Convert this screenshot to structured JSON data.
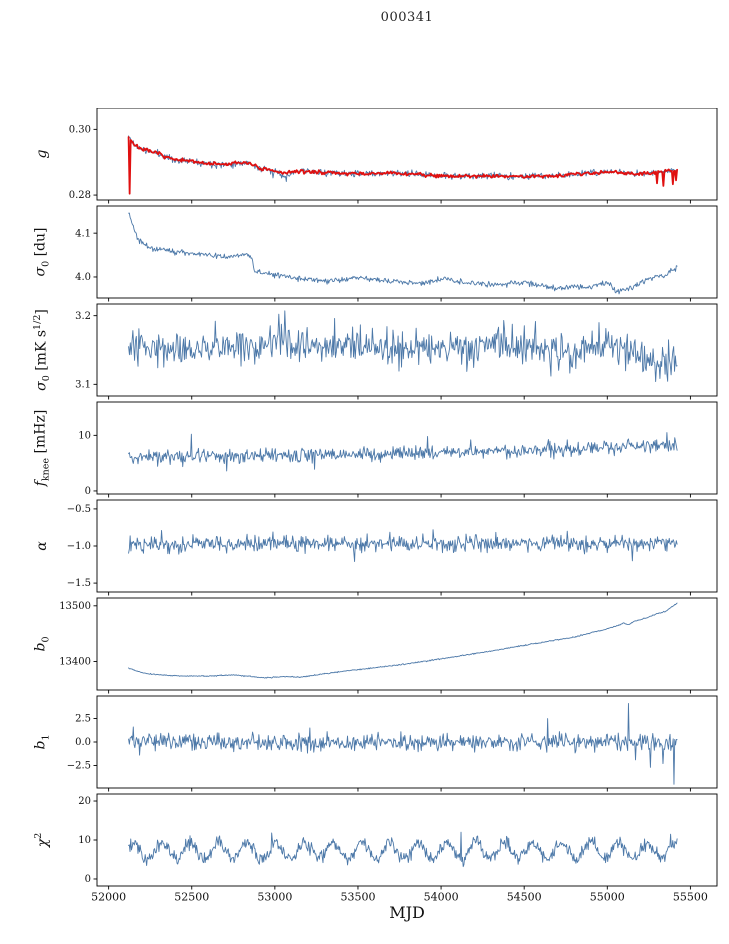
{
  "title": "000341",
  "xlabel": "MJD",
  "chart_data": {
    "type": "line",
    "title": "000341",
    "x_axis": {
      "label": "MJD",
      "range": [
        51930,
        55660
      ],
      "ticks": [
        52000,
        52500,
        53000,
        53500,
        54000,
        54500,
        55000,
        55500
      ],
      "tick_labels": [
        "52000",
        "52500",
        "53000",
        "53500",
        "54000",
        "54500",
        "55000",
        "55500"
      ]
    },
    "line_color": "#4c78a8",
    "overlay_color": "#e01010",
    "panels": [
      {
        "id": "g",
        "ylabel": "g",
        "ylabel_html": "<i>g</i>",
        "ylim": [
          0.2785,
          0.3065
        ],
        "yticks": [
          {
            "v": 0.28,
            "label": "0.28"
          },
          {
            "v": 0.3,
            "label": "0.30"
          }
        ],
        "series": [
          {
            "name": "gain-raw",
            "color": "#4c78a8",
            "lw": 0.9,
            "noise": 0.0005,
            "seed": 11,
            "n": 700,
            "trend": {
              "x": [
                52120,
                52160,
                52220,
                52300,
                52400,
                52500,
                52600,
                52700,
                52800,
                52860,
                52900,
                53000,
                53060,
                53150,
                53300,
                53500,
                53700,
                53900,
                54100,
                54300,
                54500,
                54700,
                54900,
                55050,
                55150,
                55250,
                55350,
                55420
              ],
              "y": [
                0.2978,
                0.295,
                0.2936,
                0.2926,
                0.2906,
                0.2903,
                0.2896,
                0.2893,
                0.2899,
                0.2897,
                0.2881,
                0.2872,
                0.286,
                0.2872,
                0.2869,
                0.2864,
                0.2867,
                0.2862,
                0.2857,
                0.2859,
                0.2856,
                0.286,
                0.2867,
                0.2872,
                0.2864,
                0.2866,
                0.2872,
                0.2879
              ]
            },
            "spikes": [
              {
                "x": 53070,
                "y": 0.2841
              },
              {
                "x": 52990,
                "y": 0.2852
              }
            ]
          },
          {
            "name": "gain-smooth",
            "color": "#e01010",
            "lw": 1.8,
            "noise": 0.00028,
            "seed": 7,
            "n": 520,
            "trend": {
              "x": [
                52120,
                52160,
                52220,
                52300,
                52400,
                52500,
                52600,
                52700,
                52800,
                52860,
                52900,
                53000,
                53060,
                53150,
                53300,
                53500,
                53700,
                53900,
                54100,
                54300,
                54500,
                54700,
                54900,
                55050,
                55150,
                55250,
                55350,
                55420
              ],
              "y": [
                0.2978,
                0.295,
                0.2936,
                0.2926,
                0.2906,
                0.2903,
                0.2896,
                0.2893,
                0.2899,
                0.2897,
                0.2881,
                0.2872,
                0.2868,
                0.2872,
                0.2869,
                0.2864,
                0.2867,
                0.2862,
                0.2857,
                0.2859,
                0.2856,
                0.286,
                0.2867,
                0.2872,
                0.2864,
                0.2866,
                0.2872,
                0.2879
              ]
            },
            "spikes": [
              {
                "x": 52124,
                "y": 0.3058
              },
              {
                "x": 52128,
                "y": 0.2804
              },
              {
                "x": 55300,
                "y": 0.2836
              },
              {
                "x": 55340,
                "y": 0.2828
              },
              {
                "x": 55395,
                "y": 0.2833
              },
              {
                "x": 55415,
                "y": 0.2845
              }
            ]
          }
        ]
      },
      {
        "id": "sigma0-du",
        "ylabel": "sigma0 [du]",
        "ylabel_html": "<i>σ</i><sub>0</sub> [du]",
        "ylim": [
          3.952,
          4.162
        ],
        "yticks": [
          {
            "v": 4.0,
            "label": "4.0"
          },
          {
            "v": 4.1,
            "label": "4.1"
          }
        ],
        "series": [
          {
            "name": "sigma0-du",
            "color": "#4c78a8",
            "lw": 0.9,
            "noise": 0.0032,
            "seed": 21,
            "n": 700,
            "trend": {
              "x": [
                52120,
                52170,
                52250,
                52350,
                52500,
                52600,
                52700,
                52800,
                52860,
                52880,
                53000,
                53100,
                53300,
                53500,
                53700,
                53900,
                54000,
                54100,
                54300,
                54500,
                54700,
                54800,
                54900,
                55000,
                55050,
                55150,
                55250,
                55350,
                55420
              ],
              "y": [
                4.148,
                4.09,
                4.065,
                4.06,
                4.055,
                4.05,
                4.046,
                4.05,
                4.048,
                4.012,
                4.005,
                3.998,
                3.99,
                3.998,
                3.99,
                3.986,
                3.996,
                3.99,
                3.982,
                3.988,
                3.972,
                3.98,
                3.976,
                3.988,
                3.968,
                3.976,
                3.995,
                4.005,
                4.02
              ]
            },
            "spikes": []
          }
        ]
      },
      {
        "id": "sigma0-mk",
        "ylabel": "sigma0 [mK s^1/2]",
        "ylabel_html": "<i>σ</i><sub>0</sub> [mK s<sup>1/2</sup>]",
        "ylim": [
          3.083,
          3.217
        ],
        "yticks": [
          {
            "v": 3.1,
            "label": "3.1"
          },
          {
            "v": 3.2,
            "label": "3.2"
          }
        ],
        "series": [
          {
            "name": "sigma0-mk",
            "color": "#4c78a8",
            "lw": 0.9,
            "noise": 0.013,
            "seed": 31,
            "n": 640,
            "trend": {
              "x": [
                52120,
                52300,
                52500,
                52700,
                52900,
                53050,
                53100,
                53300,
                53500,
                53700,
                53900,
                54100,
                54300,
                54500,
                54700,
                54900,
                55100,
                55250,
                55350,
                55420
              ],
              "y": [
                3.148,
                3.157,
                3.152,
                3.158,
                3.15,
                3.168,
                3.152,
                3.155,
                3.16,
                3.148,
                3.152,
                3.15,
                3.155,
                3.158,
                3.15,
                3.155,
                3.148,
                3.14,
                3.128,
                3.138
              ]
            },
            "spikes": [
              {
                "x": 53060,
                "y": 3.207
              },
              {
                "x": 52640,
                "y": 3.192
              },
              {
                "x": 53360,
                "y": 3.196
              },
              {
                "x": 54950,
                "y": 3.19
              },
              {
                "x": 55290,
                "y": 3.104
              },
              {
                "x": 54660,
                "y": 3.112
              }
            ]
          }
        ]
      },
      {
        "id": "fknee",
        "ylabel": "f_knee [mHz]",
        "ylabel_html": "<i>f</i><sub>knee</sub> [mHz]",
        "ylim": [
          -0.55,
          16
        ],
        "yticks": [
          {
            "v": 0,
            "label": "0"
          },
          {
            "v": 10,
            "label": "10"
          }
        ],
        "series": [
          {
            "name": "fknee",
            "color": "#4c78a8",
            "lw": 0.9,
            "noise": 0.65,
            "seed": 41,
            "n": 700,
            "trend": {
              "x": [
                52120,
                52600,
                53000,
                53500,
                54000,
                54500,
                55000,
                55300,
                55420
              ],
              "y": [
                6.1,
                6.2,
                6.35,
                6.6,
                6.9,
                7.3,
                7.9,
                8.3,
                8.4
              ]
            },
            "spikes": [
              {
                "x": 52500,
                "y": 10.2
              },
              {
                "x": 52710,
                "y": 3.6
              },
              {
                "x": 53920,
                "y": 9.8
              },
              {
                "x": 54180,
                "y": 9.2
              },
              {
                "x": 55360,
                "y": 10.5
              },
              {
                "x": 53240,
                "y": 3.9
              }
            ]
          }
        ]
      },
      {
        "id": "alpha",
        "ylabel": "alpha",
        "ylabel_html": "<i>α</i>",
        "ylim": [
          -1.62,
          -0.38
        ],
        "yticks": [
          {
            "v": -0.5,
            "label": "−0.5"
          },
          {
            "v": -1.0,
            "label": "−1.0"
          },
          {
            "v": -1.5,
            "label": "−1.5"
          }
        ],
        "series": [
          {
            "name": "alpha",
            "color": "#4c78a8",
            "lw": 0.9,
            "noise": 0.055,
            "seed": 51,
            "n": 700,
            "trend": {
              "x": [
                52120,
                53000,
                54000,
                55000,
                55420
              ],
              "y": [
                -0.975,
                -0.968,
                -0.972,
                -0.962,
                -0.958
              ]
            },
            "spikes": [
              {
                "x": 52320,
                "y": -0.79
              },
              {
                "x": 53480,
                "y": -1.21
              },
              {
                "x": 54760,
                "y": -0.8
              },
              {
                "x": 55150,
                "y": -1.2
              },
              {
                "x": 53950,
                "y": -0.78
              }
            ]
          }
        ]
      },
      {
        "id": "b0",
        "ylabel": "b_0",
        "ylabel_html": "<i>b</i><sub>0</sub>",
        "ylim": [
          13349,
          13514
        ],
        "yticks": [
          {
            "v": 13400,
            "label": "13400"
          },
          {
            "v": 13500,
            "label": "13500"
          }
        ],
        "series": [
          {
            "name": "b0",
            "color": "#4c78a8",
            "lw": 0.9,
            "noise": 0.5,
            "seed": 61,
            "n": 700,
            "trend": {
              "x": [
                52120,
                52200,
                52300,
                52450,
                52600,
                52750,
                52900,
                52950,
                53050,
                53150,
                53250,
                53400,
                53600,
                53800,
                54000,
                54200,
                54400,
                54600,
                54800,
                54950,
                55050,
                55100,
                55130,
                55160,
                55250,
                55300,
                55350,
                55420
              ],
              "y": [
                13388,
                13380,
                13376,
                13374,
                13374,
                13376,
                13372,
                13371,
                13373,
                13372,
                13376,
                13382,
                13389,
                13396,
                13405,
                13414,
                13424,
                13434,
                13444,
                13455,
                13463,
                13469,
                13466,
                13472,
                13480,
                13486,
                13490,
                13505
              ]
            },
            "spikes": []
          }
        ]
      },
      {
        "id": "b1",
        "ylabel": "b_1",
        "ylabel_html": "<i>b</i><sub>1</sub>",
        "ylim": [
          -4.9,
          4.9
        ],
        "yticks": [
          {
            "v": 2.5,
            "label": "2.5"
          },
          {
            "v": 0.0,
            "label": "0.0"
          },
          {
            "v": -2.5,
            "label": "−2.5"
          }
        ],
        "series": [
          {
            "name": "b1",
            "color": "#4c78a8",
            "lw": 0.9,
            "noise": 0.45,
            "seed": 71,
            "n": 700,
            "trend": {
              "x": [
                52120,
                52400,
                53000,
                54000,
                55000,
                55420
              ],
              "y": [
                0.15,
                -0.05,
                0.0,
                -0.05,
                0.05,
                -0.1
              ]
            },
            "spikes": [
              {
                "x": 52150,
                "y": 1.6
              },
              {
                "x": 52185,
                "y": -1.4
              },
              {
                "x": 53210,
                "y": 1.5
              },
              {
                "x": 54640,
                "y": 2.5
              },
              {
                "x": 55125,
                "y": 4.1
              },
              {
                "x": 55170,
                "y": -1.9
              },
              {
                "x": 55260,
                "y": -2.7
              },
              {
                "x": 55335,
                "y": -2.3
              },
              {
                "x": 55400,
                "y": -4.5
              }
            ]
          }
        ]
      },
      {
        "id": "chi2",
        "ylabel": "chi^2",
        "ylabel_html": "<i>χ</i><sup>2</sup>",
        "ylim": [
          -1.8,
          21.8
        ],
        "yticks": [
          {
            "v": 0,
            "label": "0"
          },
          {
            "v": 10,
            "label": "10"
          },
          {
            "v": 20,
            "label": "20"
          }
        ],
        "series": [
          {
            "name": "chi2",
            "color": "#4c78a8",
            "lw": 0.9,
            "noise": 0.85,
            "seed": 81,
            "n": 760,
            "trend": {
              "x": [
                52120,
                55420
              ],
              "y": [
                7.2,
                7.2
              ]
            },
            "osc": {
              "amp": 2.1,
              "period": 172,
              "phase": 0.5
            },
            "clip_min": 2.2,
            "spikes": [
              {
                "x": 52980,
                "y": 11.8
              },
              {
                "x": 54120,
                "y": 12.0
              },
              {
                "x": 55380,
                "y": 11.5
              }
            ]
          }
        ]
      }
    ]
  }
}
